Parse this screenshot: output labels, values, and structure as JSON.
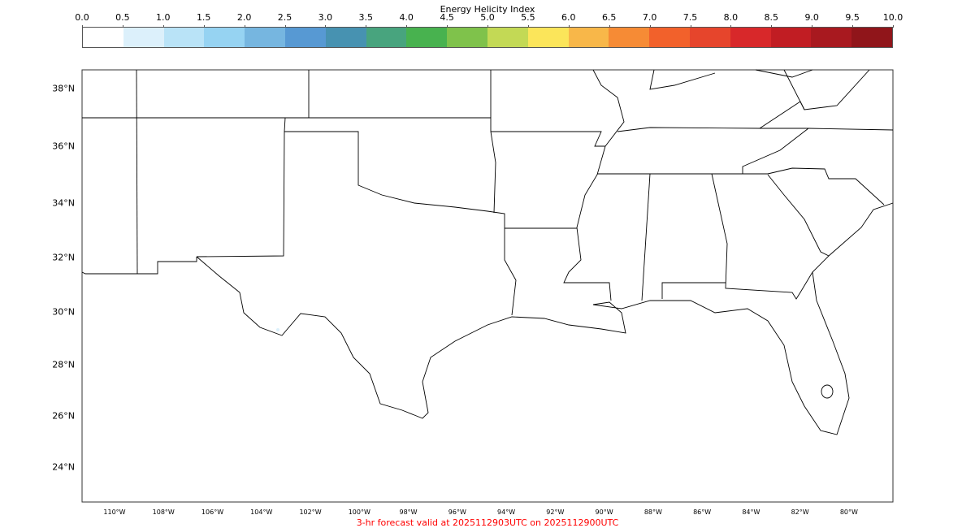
{
  "colorbar": {
    "title": "Energy Helicity Index",
    "ticks": [
      "0.0",
      "0.5",
      "1.0",
      "1.5",
      "2.0",
      "2.5",
      "3.0",
      "3.5",
      "4.0",
      "4.5",
      "5.0",
      "5.5",
      "6.0",
      "6.5",
      "7.0",
      "7.5",
      "8.0",
      "8.5",
      "9.0",
      "9.5",
      "10.0"
    ],
    "colors": [
      "#ffffff",
      "#dcf0fb",
      "#b9e3f7",
      "#96d3f2",
      "#76b6e0",
      "#5799d3",
      "#4792b1",
      "#48a47e",
      "#48b24f",
      "#7fc24b",
      "#c3d955",
      "#fbe55a",
      "#f8b749",
      "#f68b35",
      "#f2612b",
      "#e6452c",
      "#d8282a",
      "#c11d23",
      "#a8191f",
      "#90151a"
    ],
    "range": [
      0.0,
      10.0
    ]
  },
  "map": {
    "lat_labels": [
      "38°N",
      "36°N",
      "34°N",
      "32°N",
      "30°N",
      "28°N",
      "26°N",
      "24°N"
    ],
    "lon_labels": [
      "110°W",
      "108°W",
      "106°W",
      "104°W",
      "102°W",
      "100°W",
      "98°W",
      "96°W",
      "94°W",
      "92°W",
      "90°W",
      "88°W",
      "86°W",
      "84°W",
      "82°W",
      "80°W"
    ],
    "border_color": "#000000"
  },
  "footer": "3-hr forecast valid at 2025112903UTC on 2025112900UTC"
}
